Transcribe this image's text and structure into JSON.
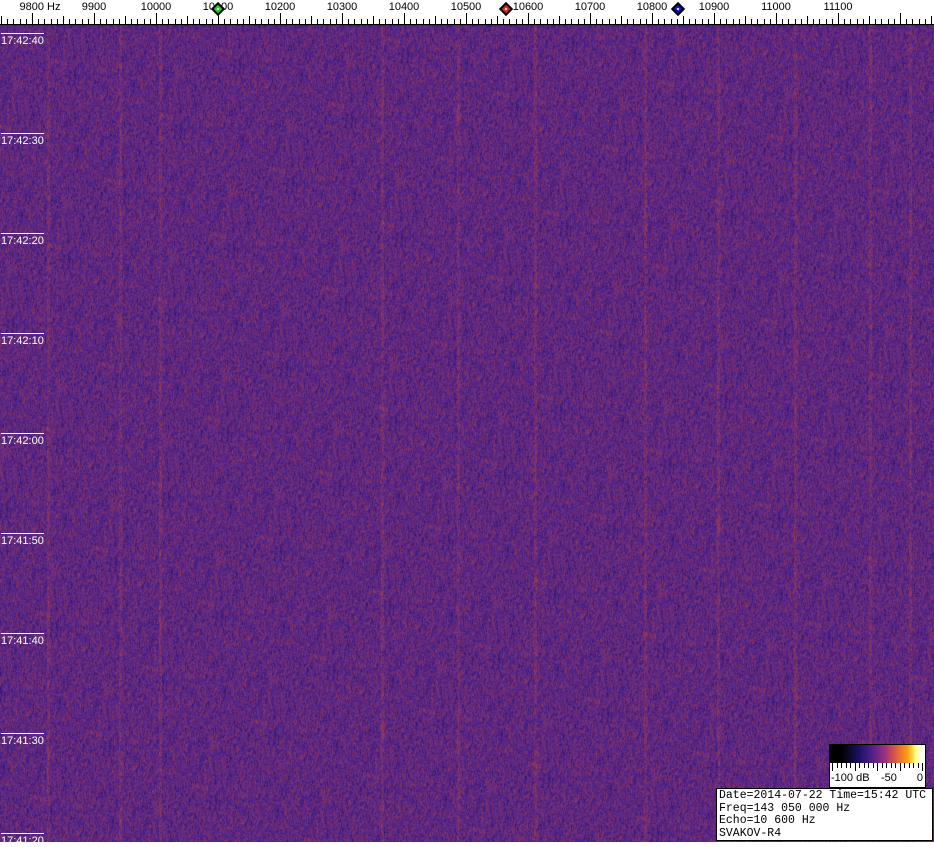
{
  "frequency_axis": {
    "labels": [
      "9800 Hz",
      "9900",
      "10000",
      "10100",
      "10200",
      "10300",
      "10400",
      "10500",
      "10600",
      "10700",
      "10800",
      "10900",
      "11000",
      "11100"
    ],
    "values": [
      9800,
      9900,
      10000,
      10100,
      10200,
      10300,
      10400,
      10500,
      10600,
      10700,
      10800,
      10900,
      11000,
      11100
    ]
  },
  "markers": [
    {
      "name": "green",
      "freq_hz": 10100,
      "color": "#22cc22"
    },
    {
      "name": "red",
      "freq_hz": 10565,
      "color": "#dd2222"
    },
    {
      "name": "blue",
      "freq_hz": 10842,
      "color": "#1111cc"
    }
  ],
  "time_axis": {
    "labels": [
      "17:42:40",
      "17:42:30",
      "17:42:20",
      "17:42:10",
      "17:42:00",
      "17:41:50",
      "17:41:40",
      "17:41:30",
      "17:41:20"
    ]
  },
  "colorbar": {
    "labels": [
      "-100 dB",
      "-50",
      "0"
    ]
  },
  "info": {
    "line1": "Date=2014-07-22 Time=15:42 UTC",
    "line2": "Freq=143 050 000 Hz",
    "line3": "Echo=10 600 Hz",
    "line4": "SVAKOV-R4"
  },
  "colors": {
    "background": "#4a2080",
    "noise_dark": "#1c1a70",
    "streak": "#a04a8a"
  }
}
